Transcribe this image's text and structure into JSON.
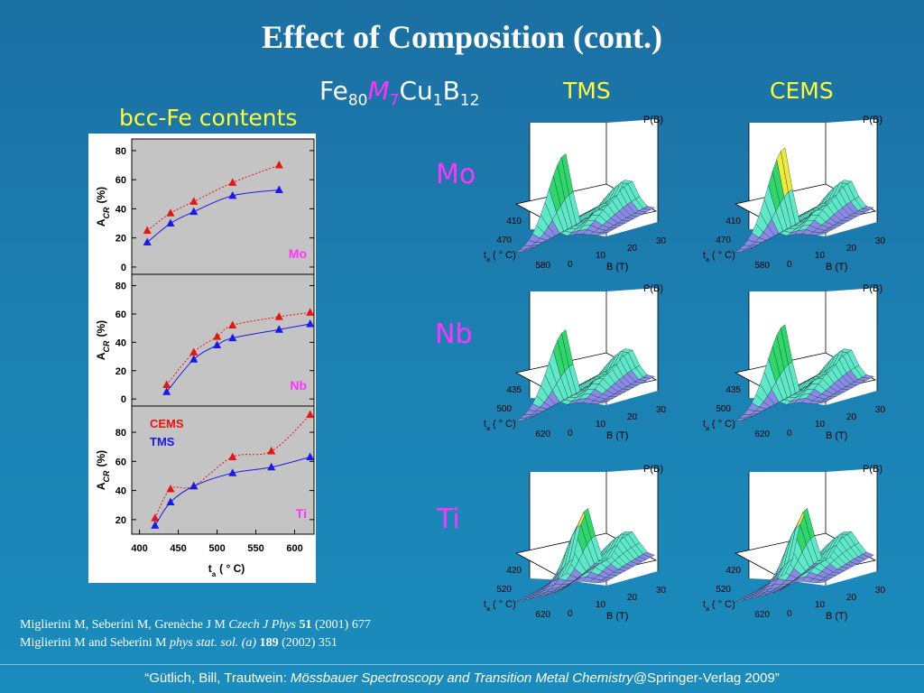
{
  "slide": {
    "title": "Effect of Composition (cont.)",
    "formula": {
      "fe": "Fe",
      "fe_sub": "80",
      "m": "M",
      "m_sub": "7",
      "cu": "Cu",
      "cu_sub": "1",
      "b": "B",
      "b_sub": "12"
    },
    "col_tms": "TMS",
    "col_cems": "CEMS",
    "left_heading": "bcc-Fe contents",
    "rows": [
      "Mo",
      "Nb",
      "Ti"
    ],
    "references": [
      {
        "authors": "Miglierini M, Seberíni M, Grenèche J M ",
        "journal": "Czech J Phys",
        "volume": "51",
        "rest": " (2001) 677"
      },
      {
        "authors": "Miglierini M and Seberíni M ",
        "journal": "phys stat. sol. (a)",
        "volume": "189",
        "rest": " (2002) 351"
      }
    ],
    "footer": {
      "pre": "“Gütlich, Bill, Trautwein: ",
      "italic": "Mössbauer Spectroscopy and Transition Metal Chemistry",
      "post": "@Springer-Verlag 2009”"
    }
  },
  "colors": {
    "cems": "#e8140f",
    "tms": "#1a1ae6",
    "panel_bg": "#c4c4c4",
    "row_label": "#ff33ff",
    "heading": "#ffff33"
  },
  "chart_data": [
    {
      "type": "line",
      "panel_label": "Mo",
      "ylabel_main": "A",
      "ylabel_sub": "CR",
      "ylabel_unit": "(%)",
      "ylim": [
        -5,
        88
      ],
      "yticks": [
        "0",
        "20",
        "40",
        "60",
        "80"
      ],
      "xlim": [
        390,
        625
      ],
      "series": [
        {
          "name": "CEMS",
          "x": [
            410,
            440,
            470,
            520,
            580
          ],
          "values": [
            25,
            37,
            45,
            58,
            70
          ]
        },
        {
          "name": "TMS",
          "x": [
            410,
            440,
            470,
            520,
            580
          ],
          "values": [
            17,
            30,
            38,
            49,
            53
          ]
        }
      ]
    },
    {
      "type": "line",
      "panel_label": "Nb",
      "ylabel_main": "A",
      "ylabel_sub": "CR",
      "ylabel_unit": "(%)",
      "ylim": [
        -5,
        88
      ],
      "yticks": [
        "0",
        "20",
        "40",
        "60",
        "80"
      ],
      "xlim": [
        390,
        625
      ],
      "series": [
        {
          "name": "CEMS",
          "x": [
            435,
            470,
            500,
            520,
            580,
            620
          ],
          "values": [
            10,
            33,
            44,
            52,
            58,
            61
          ]
        },
        {
          "name": "TMS",
          "x": [
            435,
            470,
            500,
            520,
            580,
            620
          ],
          "values": [
            5,
            28,
            38,
            43,
            49,
            53
          ]
        }
      ]
    },
    {
      "type": "line",
      "panel_label": "Ti",
      "ylabel_main": "A",
      "ylabel_sub": "CR",
      "ylabel_unit": "(%)",
      "ylim": [
        10,
        98
      ],
      "yticks": [
        "20",
        "40",
        "60",
        "80"
      ],
      "xlim": [
        390,
        625
      ],
      "xticks": [
        "400",
        "450",
        "500",
        "550",
        "600"
      ],
      "xlabel_main": "t",
      "xlabel_sub": "a",
      "xlabel_unit": "( ° C)",
      "legend": [
        "CEMS",
        "TMS"
      ],
      "series": [
        {
          "name": "CEMS",
          "x": [
            420,
            440,
            470,
            520,
            570,
            620
          ],
          "values": [
            21,
            41,
            43,
            63,
            67,
            92
          ]
        },
        {
          "name": "TMS",
          "x": [
            420,
            440,
            470,
            520,
            570,
            620
          ],
          "values": [
            16,
            32,
            43,
            52,
            56,
            63
          ]
        }
      ]
    },
    {
      "type": "surface-3d",
      "grid": [
        {
          "row": "Mo",
          "ta_ticks": [
            "410",
            "470",
            "580"
          ]
        },
        {
          "row": "Nb",
          "ta_ticks": [
            "435",
            "500",
            "620"
          ]
        },
        {
          "row": "Ti",
          "ta_ticks": [
            "420",
            "520",
            "620"
          ]
        }
      ],
      "columns": [
        "TMS",
        "CEMS"
      ],
      "zlabel": "P(B)",
      "b_label": "B (T)",
      "b_ticks": [
        "0",
        "10",
        "20",
        "30"
      ],
      "ta_label_main": "t",
      "ta_label_sub": "a",
      "ta_label_unit": "( ° C)"
    }
  ]
}
